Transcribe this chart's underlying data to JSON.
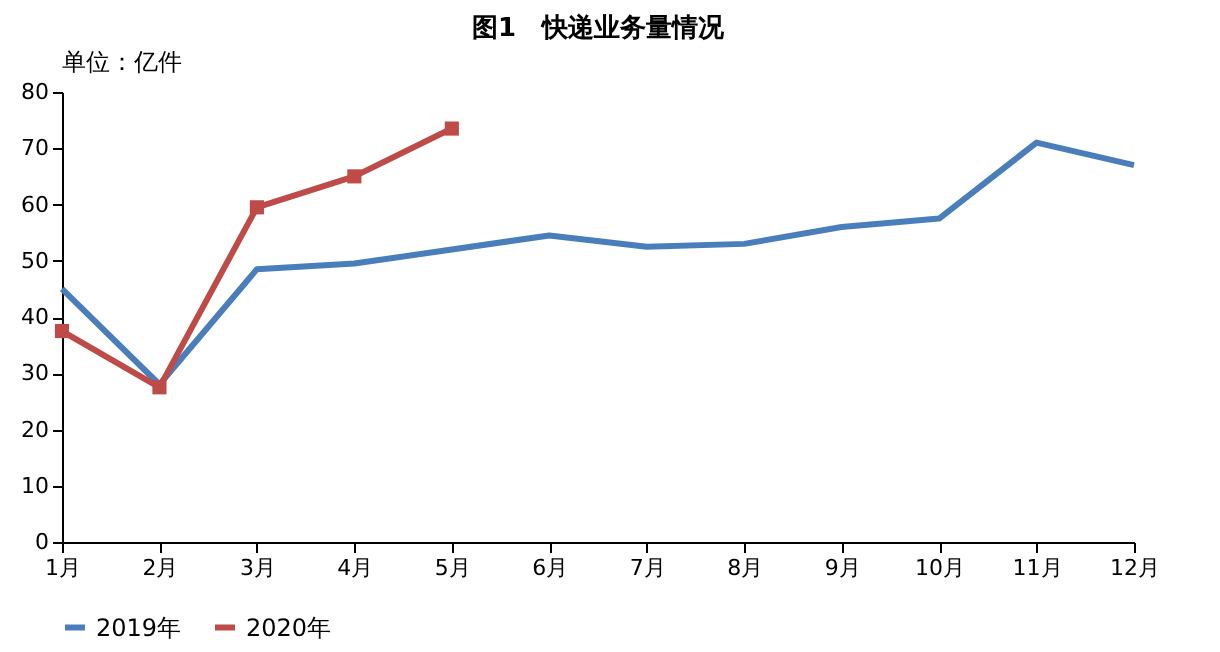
{
  "chart_data": {
    "type": "line",
    "title": "图1　快递业务量情况",
    "annotations": [
      "单位：亿件"
    ],
    "categories": [
      "1月",
      "2月",
      "3月",
      "4月",
      "5月",
      "6月",
      "7月",
      "8月",
      "9月",
      "10月",
      "11月",
      "12月"
    ],
    "series": [
      {
        "name": "2019年",
        "color": "#4a7ebb",
        "marker": "none",
        "values": [
          45,
          28,
          48.5,
          49.5,
          52,
          54.5,
          52.5,
          53,
          56,
          57.5,
          71,
          67
        ]
      },
      {
        "name": "2020年",
        "color": "#be4b48",
        "marker": "square",
        "values": [
          37.5,
          27.5,
          59.5,
          65,
          73.5,
          null,
          null,
          null,
          null,
          null,
          null,
          null
        ]
      }
    ],
    "ylim": [
      0,
      80
    ],
    "yticks": [
      0,
      10,
      20,
      30,
      40,
      50,
      60,
      70,
      80
    ],
    "grid": false,
    "legend": "bottom",
    "line_style": "solid"
  }
}
